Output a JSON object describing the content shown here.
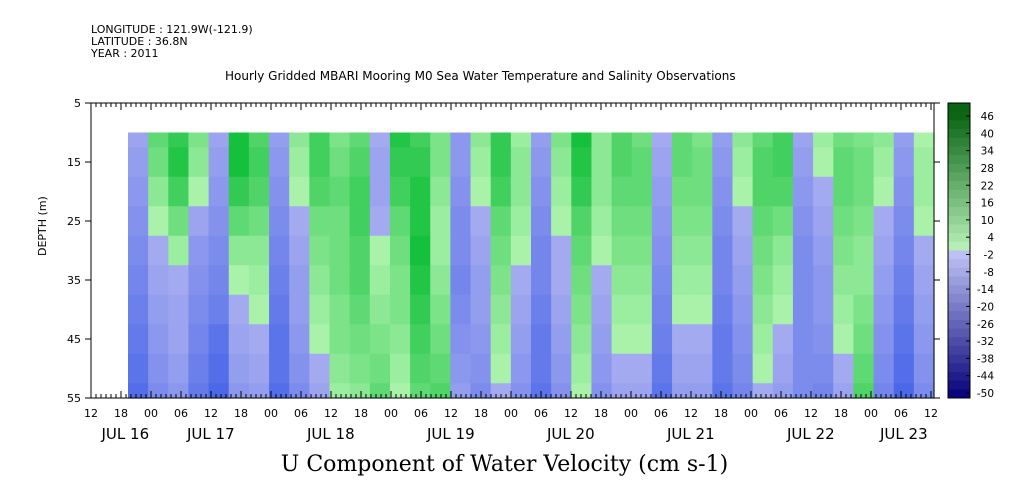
{
  "header": {
    "longitude": "LONGITUDE : 121.9W(-121.9)",
    "latitude": "LATITUDE : 36.8N",
    "year": "YEAR : 2011"
  },
  "chart_data": {
    "type": "heatmap",
    "title": "Hourly Gridded MBARI Mooring M0 Sea Water Temperature and Salinity Observations",
    "subtitle": "U Component of Water Velocity (cm s-1)",
    "ylabel": "DEPTH (m)",
    "y_ticks": [
      5,
      15,
      25,
      35,
      45,
      55
    ],
    "ylim": [
      55,
      5
    ],
    "data_depth_range": [
      10,
      55
    ],
    "x_hour_ticks": [
      "12",
      "18",
      "00",
      "06",
      "12",
      "18",
      "00",
      "06",
      "12",
      "18",
      "00",
      "06",
      "12",
      "18",
      "00",
      "06",
      "12",
      "18",
      "00",
      "06",
      "12",
      "18",
      "00",
      "06",
      "12",
      "18",
      "00",
      "06",
      "12"
    ],
    "x_day_labels": [
      "JUL 16",
      "JUL 17",
      "JUL 18",
      "JUL 19",
      "JUL 20",
      "JUL 21",
      "JUL 22",
      "JUL 23"
    ],
    "colorbar_labels": [
      "46",
      "40",
      "34",
      "28",
      "22",
      "16",
      "10",
      "4",
      "-2",
      "-8",
      "-14",
      "-20",
      "-26",
      "-32",
      "-38",
      "-44",
      "-50"
    ],
    "colorbar_range": [
      -50,
      52
    ],
    "colors": {
      "positive": "#19c04a",
      "light_positive": "#a4f0a8",
      "negative": "#a8acf0",
      "strong_negative": "#3a56dc"
    },
    "series": [
      {
        "depth": 10,
        "values": [
          -4,
          10,
          16,
          6,
          -4,
          20,
          12,
          -6,
          4,
          14,
          6,
          10,
          -2,
          18,
          14,
          6,
          -8,
          4,
          16,
          2,
          -6,
          6,
          20,
          4,
          12,
          8,
          -2,
          10,
          6,
          -6,
          4,
          10,
          14,
          -4,
          2,
          8,
          6,
          4,
          -6,
          0
        ]
      },
      {
        "depth": 15,
        "values": [
          -6,
          8,
          18,
          4,
          -6,
          20,
          14,
          -8,
          2,
          14,
          8,
          12,
          -4,
          16,
          16,
          6,
          -8,
          2,
          16,
          4,
          -8,
          4,
          18,
          4,
          12,
          10,
          -4,
          10,
          8,
          -8,
          2,
          12,
          14,
          -6,
          0,
          10,
          8,
          2,
          -8,
          2
        ]
      },
      {
        "depth": 20,
        "values": [
          -8,
          4,
          14,
          0,
          -8,
          16,
          12,
          -10,
          0,
          12,
          10,
          14,
          -4,
          14,
          18,
          4,
          -10,
          0,
          14,
          4,
          -10,
          2,
          16,
          4,
          10,
          10,
          -6,
          8,
          8,
          -10,
          0,
          12,
          12,
          -8,
          -2,
          10,
          8,
          0,
          -10,
          2
        ]
      },
      {
        "depth": 25,
        "values": [
          -10,
          0,
          8,
          -4,
          -10,
          10,
          8,
          -12,
          -2,
          8,
          8,
          14,
          -2,
          10,
          18,
          2,
          -12,
          -2,
          10,
          2,
          -12,
          0,
          12,
          2,
          8,
          8,
          -8,
          6,
          6,
          -12,
          -2,
          10,
          8,
          -10,
          -4,
          8,
          6,
          -2,
          -12,
          0
        ]
      },
      {
        "depth": 30,
        "values": [
          -12,
          -2,
          2,
          -8,
          -12,
          4,
          4,
          -14,
          -4,
          6,
          8,
          12,
          0,
          8,
          20,
          2,
          -12,
          -4,
          8,
          0,
          -14,
          -2,
          10,
          0,
          6,
          6,
          -10,
          4,
          4,
          -14,
          -4,
          8,
          4,
          -12,
          -6,
          6,
          4,
          -4,
          -14,
          -2
        ]
      },
      {
        "depth": 35,
        "values": [
          -14,
          -4,
          -2,
          -10,
          -14,
          0,
          2,
          -16,
          -6,
          4,
          8,
          12,
          2,
          6,
          18,
          4,
          -14,
          -6,
          6,
          -2,
          -14,
          -2,
          8,
          -2,
          4,
          4,
          -12,
          2,
          2,
          -14,
          -6,
          6,
          2,
          -12,
          -8,
          4,
          4,
          -6,
          -16,
          -4
        ]
      },
      {
        "depth": 40,
        "values": [
          -16,
          -6,
          -4,
          -12,
          -16,
          -2,
          0,
          -18,
          -6,
          2,
          6,
          10,
          4,
          6,
          16,
          6,
          -12,
          -6,
          4,
          -4,
          -16,
          -4,
          6,
          -4,
          2,
          2,
          -14,
          0,
          0,
          -16,
          -8,
          4,
          0,
          -12,
          -8,
          2,
          6,
          -8,
          -18,
          -6
        ]
      },
      {
        "depth": 45,
        "values": [
          -18,
          -8,
          -4,
          -14,
          -20,
          -4,
          -2,
          -20,
          -8,
          0,
          6,
          8,
          6,
          4,
          14,
          8,
          -10,
          -8,
          2,
          -6,
          -18,
          -6,
          4,
          -6,
          0,
          0,
          -16,
          -2,
          -2,
          -18,
          -10,
          2,
          -2,
          -12,
          -10,
          0,
          8,
          -10,
          -20,
          -8
        ]
      },
      {
        "depth": 50,
        "values": [
          -20,
          -10,
          -6,
          -16,
          -22,
          -6,
          -4,
          -20,
          -10,
          -2,
          4,
          6,
          8,
          2,
          12,
          10,
          -8,
          -10,
          0,
          -8,
          -18,
          -8,
          2,
          -8,
          -2,
          -2,
          -18,
          -4,
          -4,
          -18,
          -12,
          0,
          -4,
          -12,
          -12,
          -2,
          10,
          -12,
          -22,
          -10
        ]
      },
      {
        "depth": 55,
        "values": [
          -22,
          -12,
          -8,
          -18,
          -24,
          -8,
          -6,
          -22,
          -12,
          -4,
          2,
          4,
          10,
          0,
          10,
          12,
          -6,
          -12,
          -2,
          -10,
          -20,
          -10,
          0,
          -10,
          -4,
          -4,
          -20,
          -6,
          -6,
          -20,
          -14,
          -2,
          -6,
          -12,
          -14,
          -4,
          12,
          -14,
          -24,
          -12
        ]
      }
    ]
  }
}
